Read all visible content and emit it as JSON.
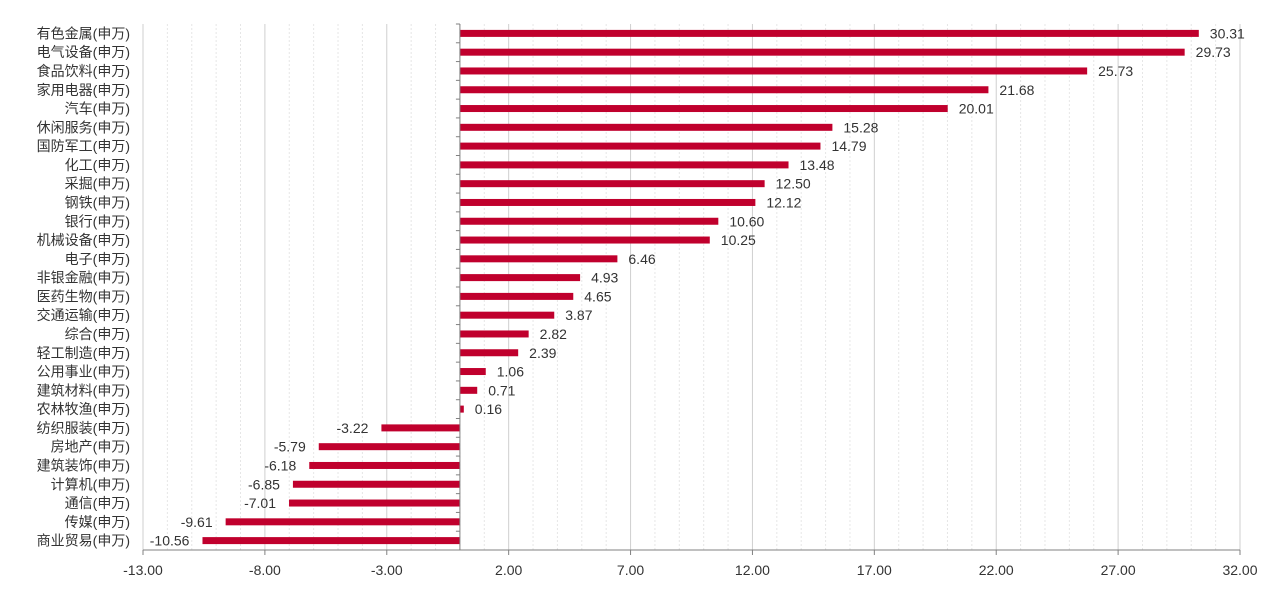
{
  "colors": {
    "bar": "#c0002d",
    "grid": "#d9d9d9",
    "axis": "#808080",
    "text": "#333333"
  },
  "chart_data": {
    "type": "bar",
    "orientation": "horizontal",
    "categories": [
      "有色金属(申万)",
      "电气设备(申万)",
      "食品饮料(申万)",
      "家用电器(申万)",
      "汽车(申万)",
      "休闲服务(申万)",
      "国防军工(申万)",
      "化工(申万)",
      "采掘(申万)",
      "钢铁(申万)",
      "银行(申万)",
      "机械设备(申万)",
      "电子(申万)",
      "非银金融(申万)",
      "医药生物(申万)",
      "交通运输(申万)",
      "综合(申万)",
      "轻工制造(申万)",
      "公用事业(申万)",
      "建筑材料(申万)",
      "农林牧渔(申万)",
      "纺织服装(申万)",
      "房地产(申万)",
      "建筑装饰(申万)",
      "计算机(申万)",
      "通信(申万)",
      "传媒(申万)",
      "商业贸易(申万)"
    ],
    "values": [
      30.31,
      29.73,
      25.73,
      21.68,
      20.01,
      15.28,
      14.79,
      13.48,
      12.5,
      12.12,
      10.6,
      10.25,
      6.46,
      4.93,
      4.65,
      3.87,
      2.82,
      2.39,
      1.06,
      0.71,
      0.16,
      -3.22,
      -5.79,
      -6.18,
      -6.85,
      -7.01,
      -9.61,
      -10.56
    ],
    "value_labels": [
      "30.31",
      "29.73",
      "25.73",
      "21.68",
      "20.01",
      "15.28",
      "14.79",
      "13.48",
      "12.50",
      "12.12",
      "10.60",
      "10.25",
      "6.46",
      "4.93",
      "4.65",
      "3.87",
      "2.82",
      "2.39",
      "1.06",
      "0.71",
      "0.16",
      "-3.22",
      "-5.79",
      "-6.18",
      "-6.85",
      "-7.01",
      "-9.61",
      "-10.56"
    ],
    "xlim": [
      -13,
      32
    ],
    "x_ticks": [
      -13,
      -8,
      -3,
      2,
      7,
      12,
      17,
      22,
      27,
      32
    ],
    "x_tick_labels": [
      "-13.00",
      "-8.00",
      "-3.00",
      "2.00",
      "7.00",
      "12.00",
      "17.00",
      "22.00",
      "27.00",
      "32.00"
    ],
    "minor_grid_step": 1,
    "grid": true,
    "legend": "none"
  }
}
